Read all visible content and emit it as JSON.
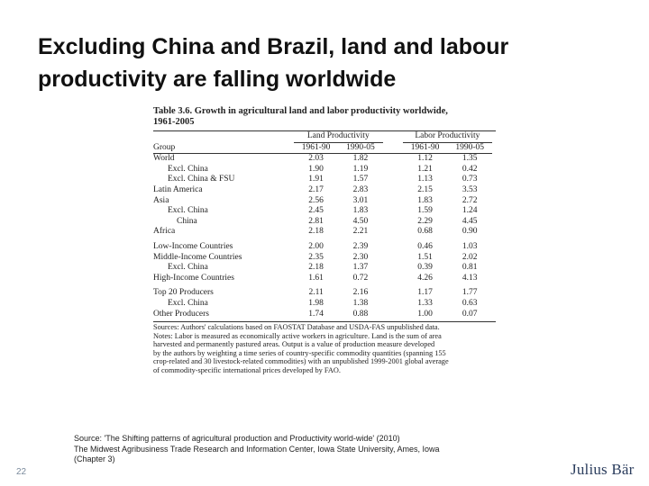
{
  "slide": {
    "title_line1": "Excluding China and Brazil, land and labour",
    "title_line2": "productivity are falling worldwide",
    "page_number": "22",
    "logo_text": "Julius Bär"
  },
  "table_figure": {
    "title_line1": "Table 3.6. Growth in agricultural land and labor productivity worldwide,",
    "title_line2": "1961-2005",
    "group_header": "Group",
    "land_header": "Land Productivity",
    "labor_header": "Labor Productivity",
    "col_1": "1961-90",
    "col_2": "1990-05",
    "col_3": "1961-90",
    "col_4": "1990-05",
    "rows": [
      {
        "group": "World",
        "v1": "2.03",
        "v2": "1.82",
        "v3": "1.12",
        "v4": "1.35"
      },
      {
        "group": "Excl. China",
        "v1": "1.90",
        "v2": "1.19",
        "v3": "1.21",
        "v4": "0.42"
      },
      {
        "group": "Excl. China & FSU",
        "v1": "1.91",
        "v2": "1.57",
        "v3": "1.13",
        "v4": "0.73"
      },
      {
        "group": "Latin America",
        "v1": "2.17",
        "v2": "2.83",
        "v3": "2.15",
        "v4": "3.53"
      },
      {
        "group": "Asia",
        "v1": "2.56",
        "v2": "3.01",
        "v3": "1.83",
        "v4": "2.72"
      },
      {
        "group": "Excl. China",
        "v1": "2.45",
        "v2": "1.83",
        "v3": "1.59",
        "v4": "1.24"
      },
      {
        "group": "China",
        "v1": "2.81",
        "v2": "4.50",
        "v3": "2.29",
        "v4": "4.45"
      },
      {
        "group": "Africa",
        "v1": "2.18",
        "v2": "2.21",
        "v3": "0.68",
        "v4": "0.90"
      },
      {
        "group": "Low-Income Countries",
        "v1": "2.00",
        "v2": "2.39",
        "v3": "0.46",
        "v4": "1.03"
      },
      {
        "group": "Middle-Income Countries",
        "v1": "2.35",
        "v2": "2.30",
        "v3": "1.51",
        "v4": "2.02"
      },
      {
        "group": "Excl. China",
        "v1": "2.18",
        "v2": "1.37",
        "v3": "0.39",
        "v4": "0.81"
      },
      {
        "group": "High-Income Countries",
        "v1": "1.61",
        "v2": "0.72",
        "v3": "4.26",
        "v4": "4.13"
      },
      {
        "group": "Top 20 Producers",
        "v1": "2.11",
        "v2": "2.16",
        "v3": "1.17",
        "v4": "1.77"
      },
      {
        "group": "Excl. China",
        "v1": "1.98",
        "v2": "1.38",
        "v3": "1.33",
        "v4": "0.63"
      },
      {
        "group": "Other Producers",
        "v1": "1.74",
        "v2": "0.88",
        "v3": "1.00",
        "v4": "0.07"
      }
    ],
    "notes_line1": "Sources: Authors' calculations based on FAOSTAT Database and USDA-FAS unpublished data.",
    "notes_line2": "Notes: Labor is measured as economically active workers in agriculture. Land is the sum of area",
    "notes_line3": "harvested and permanently pastured areas. Output is a value of production measure developed",
    "notes_line4": "by the authors by weighting a time series of country-specific commodity quantities (spanning 155",
    "notes_line5": "crop-related and 30 livestock-related commodities) with an unpublished 1999-2001 global average",
    "notes_line6": "of commodity-specific international prices developed by FAO."
  },
  "source": {
    "line1": "Source: 'The Shifting patterns of agricultural production and Productivity world-wide' (2010)",
    "line2": "The Midwest Agribusiness Trade Research and Information Center,  Iowa State University, Ames, Iowa",
    "line3": "(Chapter 3)"
  }
}
